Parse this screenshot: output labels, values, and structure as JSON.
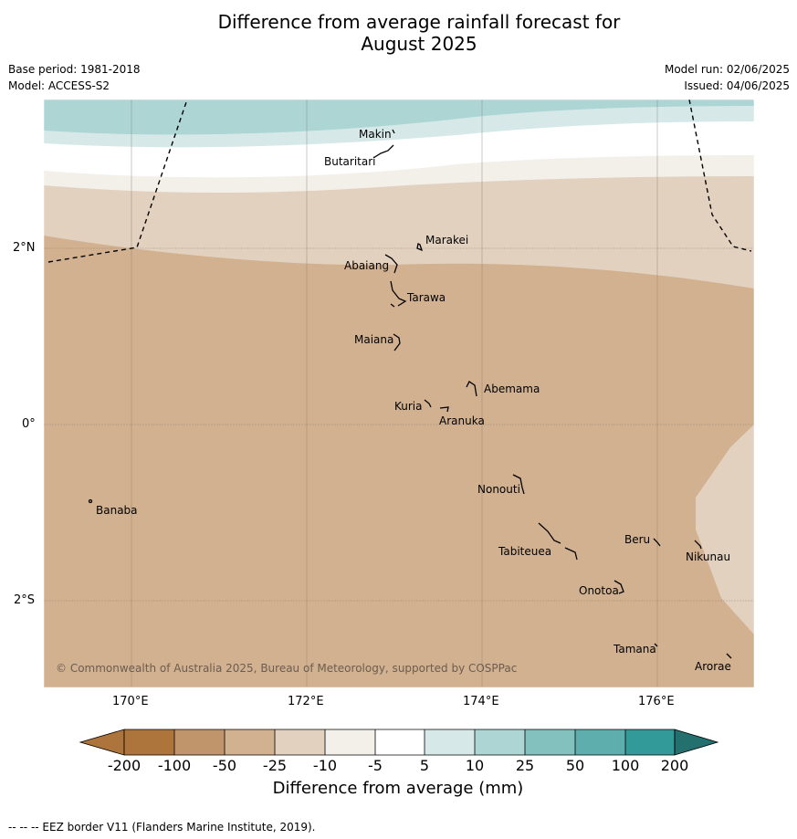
{
  "title": {
    "line1": "Difference from average rainfall forecast for",
    "line2": "August 2025"
  },
  "meta": {
    "base_period": "Base period: 1981-2018",
    "model": "Model: ACCESS-S2",
    "model_run": "Model run: 02/06/2025",
    "issued": "Issued: 04/06/2025"
  },
  "map": {
    "lon_labels": [
      "170°E",
      "172°E",
      "174°E",
      "176°E"
    ],
    "lat_labels": [
      "2°N",
      "0°",
      "2°S"
    ],
    "copyright": "© Commonwealth of Australia 2025, Bureau of Meteorology, supported by COSPPac",
    "islands": [
      {
        "name": "Makin"
      },
      {
        "name": "Butaritari"
      },
      {
        "name": "Marakei"
      },
      {
        "name": "Abaiang"
      },
      {
        "name": "Tarawa"
      },
      {
        "name": "Maiana"
      },
      {
        "name": "Abemama"
      },
      {
        "name": "Kuria"
      },
      {
        "name": "Aranuka"
      },
      {
        "name": "Nonouti"
      },
      {
        "name": "Banaba"
      },
      {
        "name": "Beru"
      },
      {
        "name": "Tabiteuea"
      },
      {
        "name": "Nikunau"
      },
      {
        "name": "Onotoa"
      },
      {
        "name": "Tamana"
      },
      {
        "name": "Arorae"
      }
    ]
  },
  "colorbar": {
    "ticks": [
      "-200",
      "-100",
      "-50",
      "-25",
      "-10",
      "-5",
      "5",
      "10",
      "25",
      "50",
      "100",
      "200"
    ],
    "colors": [
      "#ad743c",
      "#c1956b",
      "#d2b191",
      "#e3d1c0",
      "#f3efe9",
      "#ffffff",
      "#d6e9e8",
      "#acd5d4",
      "#83c1bf",
      "#5daeac",
      "#329a98",
      "#24706f"
    ],
    "title": "Difference from average (mm)"
  },
  "footer": "-- -- -- EEZ border V11 (Flanders Marine Institute, 2019)."
}
